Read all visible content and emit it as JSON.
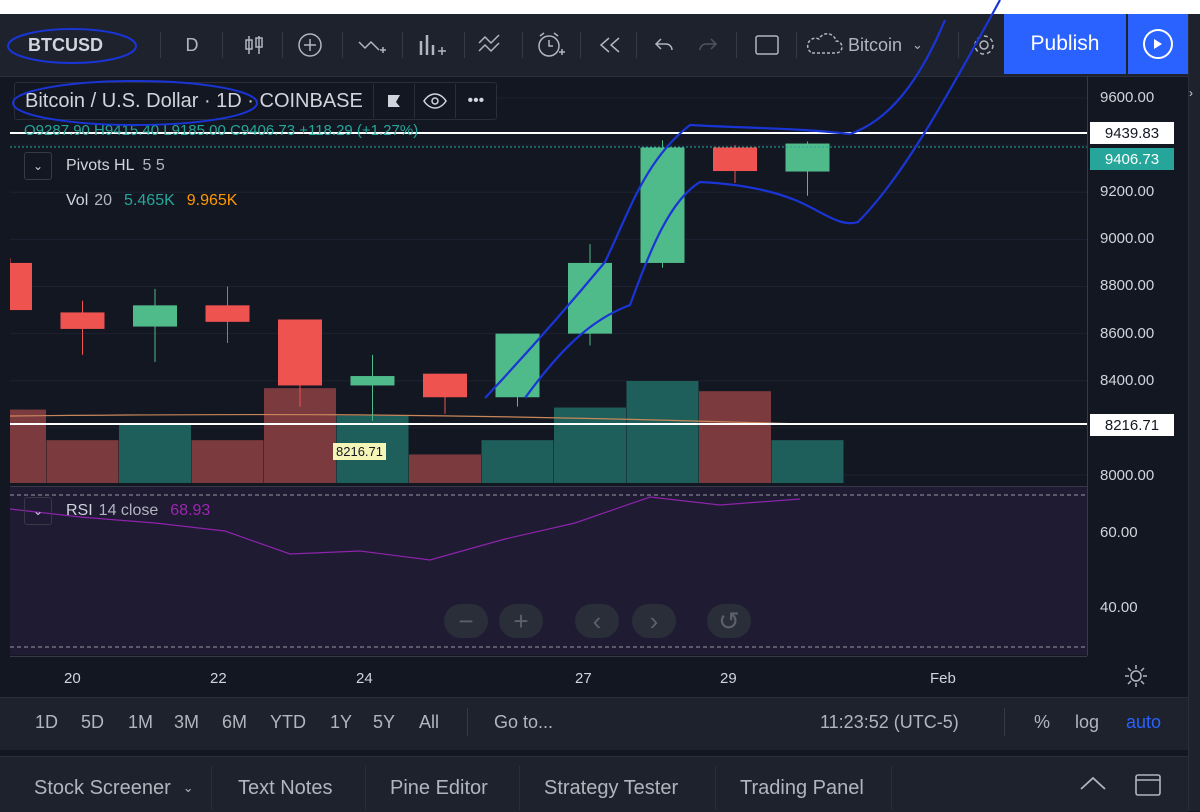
{
  "toolbar": {
    "symbol": "BTCUSD",
    "interval": "D",
    "compare_text": "Bitcoin",
    "publish_label": "Publish"
  },
  "legend": {
    "title": "Bitcoin / U.S. Dollar · 1D · COINBASE",
    "ohlc": "O9287.90  H9415.40  L9185.00  C9406.73  +118.29 (+1.27%)",
    "pivots_label": "Pivots HL",
    "pivots_params": "5 5",
    "vol_label": "Vol",
    "vol_param": "20",
    "vol_value1": "5.465K",
    "vol_value2": "9.965K",
    "rsi_label": "RSI",
    "rsi_params": "14 close",
    "rsi_value": "68.93"
  },
  "axis": {
    "price_ticks": [
      "9600.00",
      "9200.00",
      "9000.00",
      "8800.00",
      "8600.00",
      "8400.00",
      "8000.00"
    ],
    "rsi_ticks": [
      "60.00",
      "40.00"
    ],
    "price_tags": [
      "9439.83",
      "9406.73",
      "8216.71"
    ],
    "hline_label": "8216.71",
    "date_ticks": [
      "20",
      "22",
      "24",
      "27",
      "29",
      "Feb"
    ]
  },
  "chart_data": {
    "type": "candlestick",
    "candles": [
      {
        "o": 8900,
        "h": 8920,
        "l": 8700,
        "c": 8700
      },
      {
        "o": 8690,
        "h": 8740,
        "l": 8510,
        "c": 8620
      },
      {
        "o": 8630,
        "h": 8790,
        "l": 8480,
        "c": 8720
      },
      {
        "o": 8720,
        "h": 8800,
        "l": 8560,
        "c": 8650
      },
      {
        "o": 8660,
        "h": 8660,
        "l": 8290,
        "c": 8380
      },
      {
        "o": 8380,
        "h": 8510,
        "l": 8230,
        "c": 8420
      },
      {
        "o": 8430,
        "h": 8430,
        "l": 8260,
        "c": 8330
      },
      {
        "o": 8330,
        "h": 8600,
        "l": 8290,
        "c": 8600
      },
      {
        "o": 8600,
        "h": 8980,
        "l": 8550,
        "c": 8900
      },
      {
        "o": 8900,
        "h": 9420,
        "l": 8880,
        "c": 9390
      },
      {
        "o": 9390,
        "h": 9400,
        "l": 9240,
        "c": 9290
      },
      {
        "o": 9287.9,
        "h": 9415.4,
        "l": 9185,
        "c": 9406.73
      }
    ],
    "volume_up_color": "#26a69a",
    "volume_down_color": "#ef5350"
  },
  "time_ranges": {
    "items": [
      "1D",
      "5D",
      "1M",
      "3M",
      "6M",
      "YTD",
      "1Y",
      "5Y",
      "All"
    ],
    "goto": "Go to...",
    "clock": "11:23:52 (UTC-5)",
    "pct": "%",
    "log": "log",
    "auto": "auto"
  },
  "bottom_tabs": [
    "Stock Screener",
    "Text Notes",
    "Pine Editor",
    "Strategy Tester",
    "Trading Panel"
  ]
}
